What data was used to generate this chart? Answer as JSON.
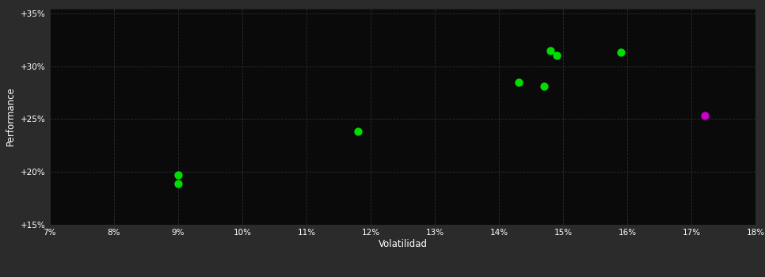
{
  "background_color": "#2b2b2b",
  "plot_bg_color": "#0a0a0a",
  "grid_color": "#2d2d2d",
  "text_color": "#ffffff",
  "xlabel": "Volatilidad",
  "ylabel": "Performance",
  "xlim": [
    0.07,
    0.18
  ],
  "ylim": [
    0.15,
    0.355
  ],
  "xticks": [
    0.07,
    0.08,
    0.09,
    0.1,
    0.11,
    0.12,
    0.13,
    0.14,
    0.15,
    0.16,
    0.17,
    0.18
  ],
  "yticks": [
    0.15,
    0.2,
    0.25,
    0.3,
    0.35
  ],
  "green_points": [
    [
      0.09,
      0.197
    ],
    [
      0.09,
      0.189
    ],
    [
      0.118,
      0.238
    ],
    [
      0.143,
      0.285
    ],
    [
      0.147,
      0.281
    ],
    [
      0.148,
      0.315
    ],
    [
      0.149,
      0.31
    ],
    [
      0.159,
      0.313
    ]
  ],
  "magenta_points": [
    [
      0.172,
      0.253
    ]
  ],
  "green_color": "#00dd00",
  "magenta_color": "#cc00cc",
  "marker_size": 55
}
